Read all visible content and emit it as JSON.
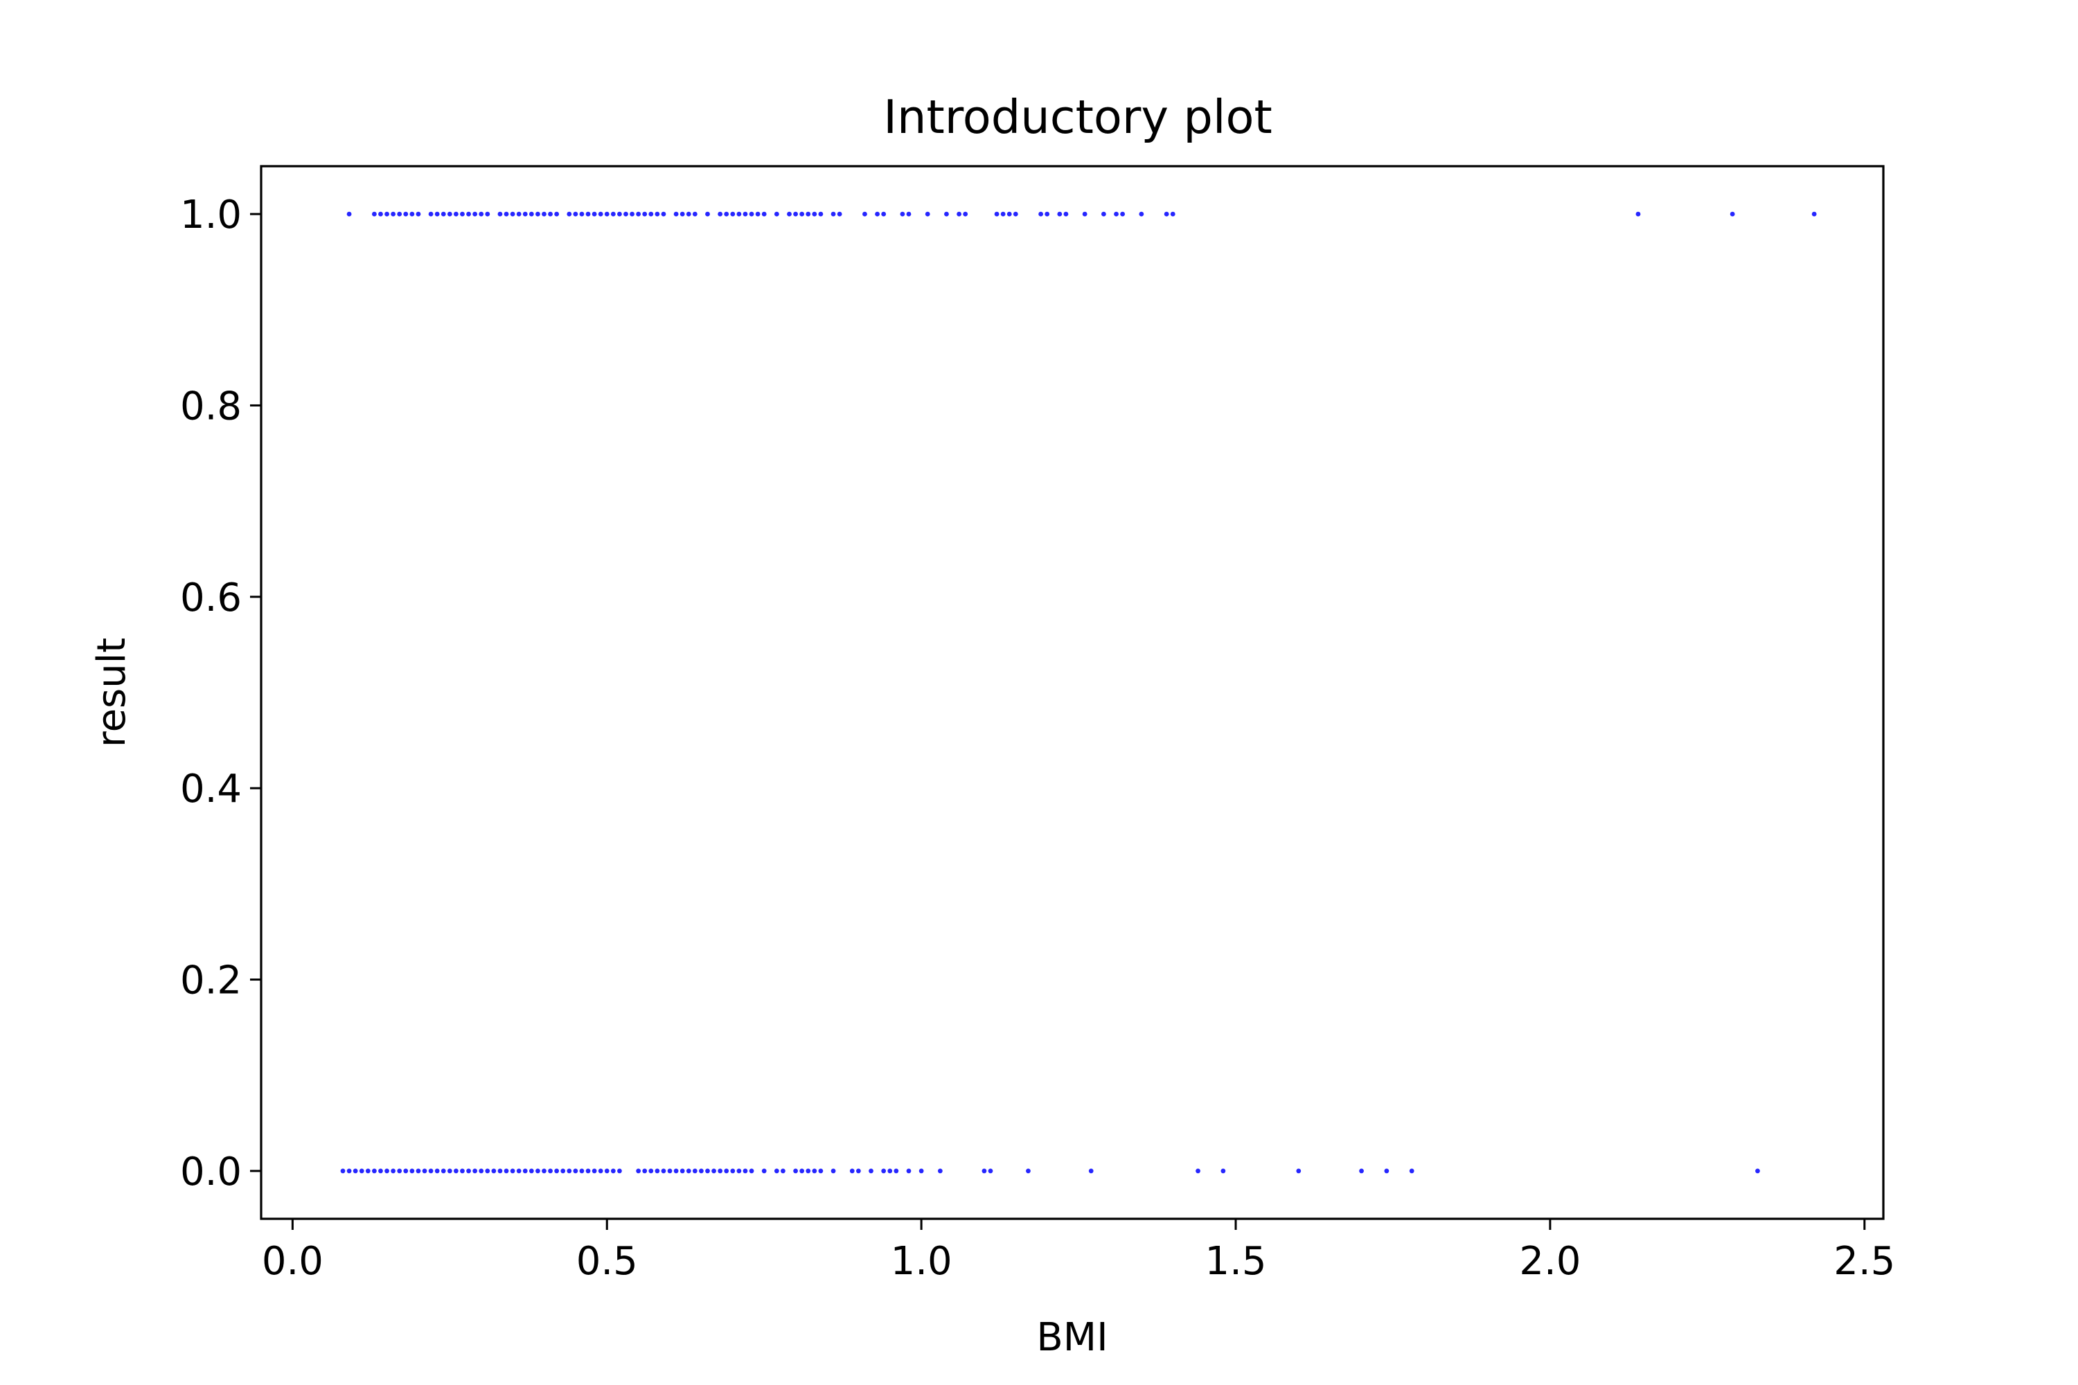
{
  "chart_data": {
    "type": "scatter",
    "title": "Introductory plot",
    "xlabel": "BMI",
    "ylabel": "result",
    "xlim": [
      -0.05,
      2.53
    ],
    "ylim": [
      -0.05,
      1.05
    ],
    "x_ticks": [
      0.0,
      0.5,
      1.0,
      1.5,
      2.0,
      2.5
    ],
    "x_tick_labels": [
      "0.0",
      "0.5",
      "1.0",
      "1.5",
      "2.0",
      "2.5"
    ],
    "y_ticks": [
      0.0,
      0.2,
      0.4,
      0.6,
      0.8,
      1.0
    ],
    "y_tick_labels": [
      "0.0",
      "0.2",
      "0.4",
      "0.6",
      "0.8",
      "1.0"
    ],
    "grid": false,
    "legend": "none",
    "marker_color": "#0000ff",
    "series": [
      {
        "y": 1.0,
        "x": [
          0.09,
          0.13,
          0.14,
          0.15,
          0.16,
          0.17,
          0.18,
          0.19,
          0.2,
          0.22,
          0.23,
          0.24,
          0.25,
          0.26,
          0.27,
          0.28,
          0.29,
          0.3,
          0.31,
          0.33,
          0.34,
          0.35,
          0.36,
          0.37,
          0.38,
          0.39,
          0.4,
          0.41,
          0.42,
          0.44,
          0.45,
          0.46,
          0.47,
          0.48,
          0.49,
          0.5,
          0.51,
          0.52,
          0.53,
          0.54,
          0.55,
          0.56,
          0.57,
          0.58,
          0.59,
          0.61,
          0.62,
          0.63,
          0.64,
          0.66,
          0.68,
          0.69,
          0.7,
          0.71,
          0.72,
          0.73,
          0.74,
          0.75,
          0.77,
          0.79,
          0.8,
          0.81,
          0.82,
          0.83,
          0.84,
          0.86,
          0.87,
          0.91,
          0.93,
          0.94,
          0.97,
          0.98,
          1.01,
          1.04,
          1.06,
          1.07,
          1.12,
          1.13,
          1.14,
          1.15,
          1.19,
          1.2,
          1.22,
          1.23,
          1.26,
          1.29,
          1.31,
          1.32,
          1.35,
          1.39,
          1.4,
          2.14,
          2.29,
          2.42
        ]
      },
      {
        "y": 0.0,
        "x": [
          0.08,
          0.09,
          0.1,
          0.11,
          0.12,
          0.13,
          0.14,
          0.15,
          0.16,
          0.17,
          0.18,
          0.19,
          0.2,
          0.21,
          0.22,
          0.23,
          0.24,
          0.25,
          0.26,
          0.27,
          0.28,
          0.29,
          0.3,
          0.31,
          0.32,
          0.33,
          0.34,
          0.35,
          0.36,
          0.37,
          0.38,
          0.39,
          0.4,
          0.41,
          0.42,
          0.43,
          0.44,
          0.45,
          0.46,
          0.47,
          0.48,
          0.49,
          0.5,
          0.51,
          0.52,
          0.55,
          0.56,
          0.57,
          0.58,
          0.59,
          0.6,
          0.61,
          0.62,
          0.63,
          0.64,
          0.65,
          0.66,
          0.67,
          0.68,
          0.69,
          0.7,
          0.71,
          0.72,
          0.73,
          0.75,
          0.77,
          0.78,
          0.8,
          0.81,
          0.82,
          0.83,
          0.84,
          0.86,
          0.89,
          0.9,
          0.92,
          0.94,
          0.95,
          0.96,
          0.98,
          1.0,
          1.03,
          1.1,
          1.11,
          1.17,
          1.27,
          1.44,
          1.48,
          1.6,
          1.7,
          1.74,
          1.78,
          2.33
        ]
      }
    ]
  }
}
